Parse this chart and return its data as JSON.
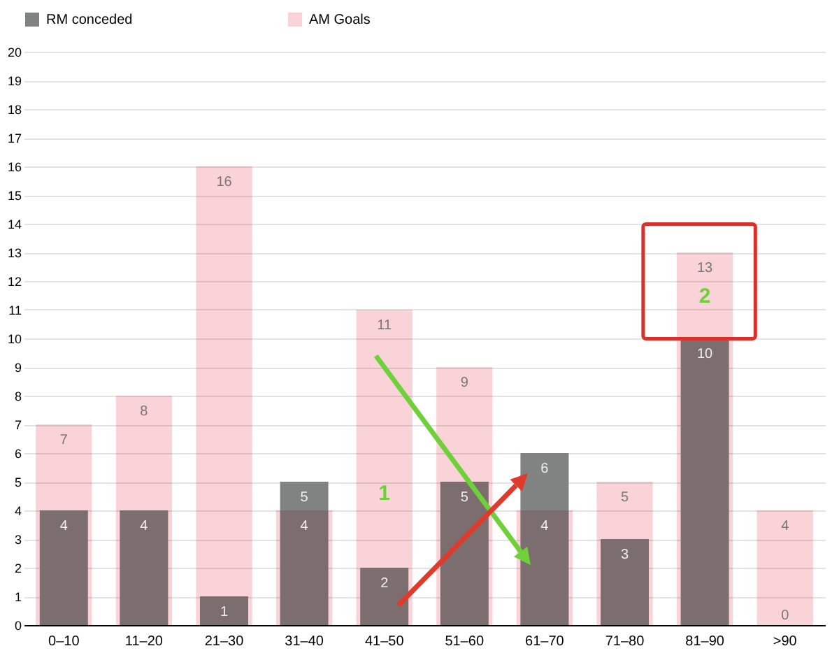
{
  "chart_data": {
    "type": "bar",
    "categories": [
      "0–10",
      "11–20",
      "21–30",
      "31–40",
      "41–50",
      "51–60",
      "61–70",
      "71–80",
      "81–90",
      ">90"
    ],
    "series": [
      {
        "name": "RM conceded",
        "color": "#7f8482",
        "values": [
          4,
          4,
          1,
          5,
          2,
          5,
          6,
          3,
          10,
          0
        ]
      },
      {
        "name": "AM Goals",
        "color": "#f9d3d8",
        "values": [
          7,
          8,
          16,
          4,
          11,
          9,
          4,
          5,
          13,
          4
        ]
      }
    ],
    "ylim": [
      0,
      20
    ],
    "yticks": [
      0,
      1,
      2,
      3,
      4,
      5,
      6,
      7,
      8,
      9,
      10,
      11,
      12,
      13,
      14,
      15,
      16,
      17,
      18,
      19,
      20
    ],
    "grid": "y",
    "legend": "top",
    "data_labels": true,
    "annotations": [
      "1",
      "2"
    ]
  }
}
